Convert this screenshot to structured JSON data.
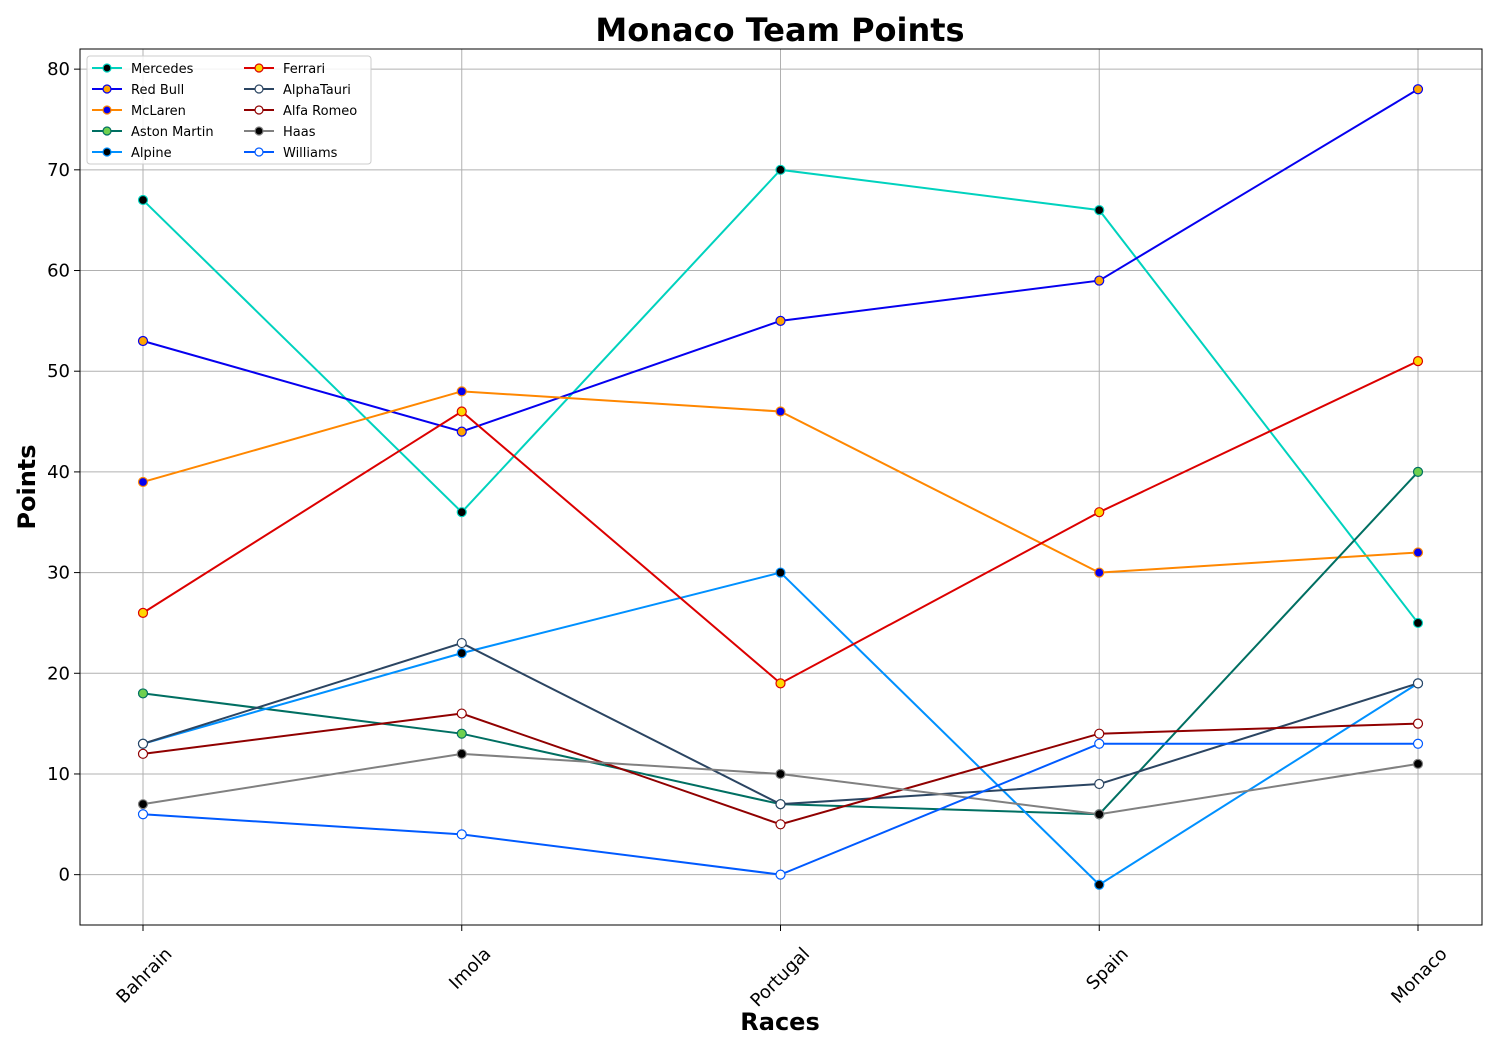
{
  "chart_data": {
    "type": "line",
    "title": "Monaco Team Points",
    "xlabel": "Races",
    "ylabel": "Points",
    "categories": [
      "Bahrain",
      "Imola",
      "Portugal",
      "Spain",
      "Monaco"
    ],
    "ylim": [
      -5,
      82
    ],
    "yticks": [
      0,
      10,
      20,
      30,
      40,
      50,
      60,
      70,
      80
    ],
    "grid": true,
    "legend_position": "top-left",
    "legend_columns": 2,
    "series": [
      {
        "name": "Mercedes",
        "values": [
          67,
          36,
          70,
          66,
          25
        ],
        "line_color": "#00d2be",
        "marker_face": "#000000",
        "marker_edge": "#00d2be"
      },
      {
        "name": "Red Bull",
        "values": [
          53,
          44,
          55,
          59,
          78
        ],
        "line_color": "#0600ef",
        "marker_face": "#ffa500",
        "marker_edge": "#0600ef"
      },
      {
        "name": "McLaren",
        "values": [
          39,
          48,
          46,
          30,
          32
        ],
        "line_color": "#ff8700",
        "marker_face": "#0600ef",
        "marker_edge": "#ff8700"
      },
      {
        "name": "Aston Martin",
        "values": [
          18,
          14,
          7,
          6,
          40
        ],
        "line_color": "#006f62",
        "marker_face": "#6fd04f",
        "marker_edge": "#006f62"
      },
      {
        "name": "Alpine",
        "values": [
          13,
          22,
          30,
          -1,
          19
        ],
        "line_color": "#0090ff",
        "marker_face": "#000000",
        "marker_edge": "#0090ff"
      },
      {
        "name": "Ferrari",
        "values": [
          26,
          46,
          19,
          36,
          51
        ],
        "line_color": "#dc0000",
        "marker_face": "#ffd700",
        "marker_edge": "#dc0000"
      },
      {
        "name": "AlphaTauri",
        "values": [
          13,
          23,
          7,
          9,
          19
        ],
        "line_color": "#2b4562",
        "marker_face": "#ffffff",
        "marker_edge": "#2b4562"
      },
      {
        "name": "Alfa Romeo",
        "values": [
          12,
          16,
          5,
          14,
          15
        ],
        "line_color": "#900000",
        "marker_face": "#ffffff",
        "marker_edge": "#900000"
      },
      {
        "name": "Haas",
        "values": [
          7,
          12,
          10,
          6,
          11
        ],
        "line_color": "#808080",
        "marker_face": "#000000",
        "marker_edge": "#808080"
      },
      {
        "name": "Williams",
        "values": [
          6,
          4,
          0,
          13,
          13
        ],
        "line_color": "#005aff",
        "marker_face": "#ffffff",
        "marker_edge": "#005aff"
      }
    ]
  }
}
